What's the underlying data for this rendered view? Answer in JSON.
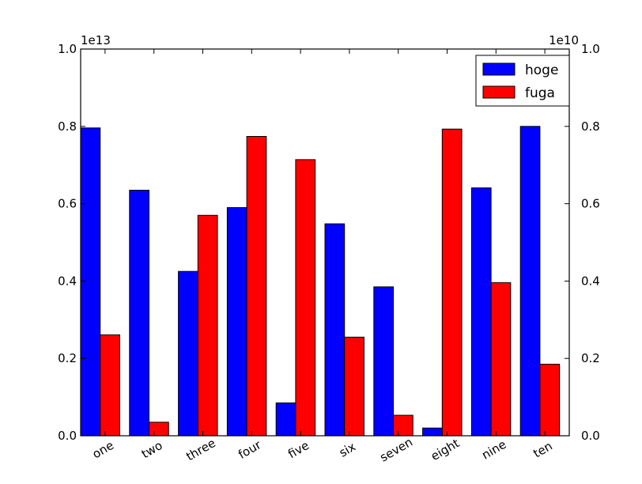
{
  "chart_data": {
    "type": "bar",
    "categories": [
      "one",
      "two",
      "three",
      "four",
      "five",
      "six",
      "seven",
      "eight",
      "nine",
      "ten"
    ],
    "series": [
      {
        "name": "hoge",
        "axis": "left",
        "color": "#0000ff",
        "values": [
          0.796,
          0.635,
          0.425,
          0.59,
          0.085,
          0.548,
          0.385,
          0.02,
          0.641,
          0.8
        ]
      },
      {
        "name": "fuga",
        "axis": "right",
        "color": "#ff0000",
        "values": [
          0.261,
          0.035,
          0.57,
          0.774,
          0.714,
          0.255,
          0.053,
          0.793,
          0.396,
          0.185
        ]
      }
    ],
    "left_axis": {
      "range": [
        0,
        1.0
      ],
      "ticks": [
        "0.0",
        "0.2",
        "0.4",
        "0.6",
        "0.8",
        "1.0"
      ],
      "scale_label": "1e13"
    },
    "right_axis": {
      "range": [
        0,
        1.0
      ],
      "ticks": [
        "0.0",
        "0.2",
        "0.4",
        "0.6",
        "0.8",
        "1.0"
      ],
      "scale_label": "1e10"
    },
    "title": "",
    "xlabel": "",
    "ylabel": "",
    "legend": {
      "position": "top-right",
      "entries": [
        "hoge",
        "fuga"
      ]
    },
    "grid": false
  }
}
